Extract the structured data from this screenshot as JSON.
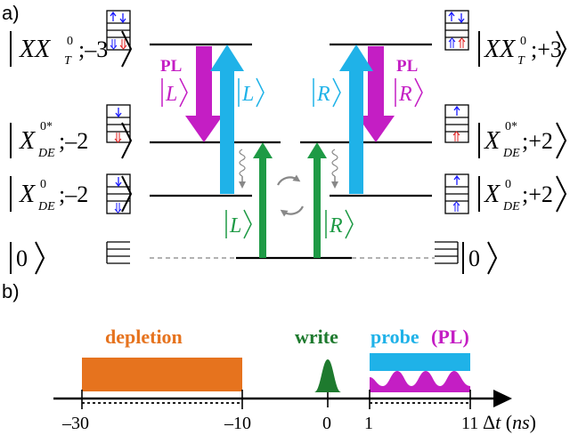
{
  "panel_a": {
    "label": "a)",
    "states_left": [
      {
        "name": "XX",
        "sub": "T",
        "sup": "0",
        "value": "–3"
      },
      {
        "name": "X",
        "sub": "DE",
        "sup": "0*",
        "value": "–2"
      },
      {
        "name": "X",
        "sub": "DE",
        "sup": "0",
        "value": "–2"
      },
      {
        "name": "0",
        "sub": "",
        "sup": "",
        "value": ""
      }
    ],
    "states_right": [
      {
        "name": "XX",
        "sub": "T",
        "sup": "0",
        "value": "+3"
      },
      {
        "name": "X",
        "sub": "DE",
        "sup": "0*",
        "value": "+2"
      },
      {
        "name": "X",
        "sub": "DE",
        "sup": "0",
        "value": "+2"
      },
      {
        "name": "0",
        "sub": "",
        "sup": "",
        "value": ""
      }
    ],
    "pl_label_left": "PL",
    "pl_label_right": "PL",
    "pol_left": "L",
    "pol_right": "R",
    "colors": {
      "pl": "#c41ec4",
      "probe": "#1fb2e8",
      "write": "#1e9a45",
      "up_spin": "#1a1aff",
      "down_spin": "#e02020",
      "relax": "#888888"
    }
  },
  "panel_b": {
    "label": "b)",
    "depletion_label": "depletion",
    "write_label": "write",
    "probe_label": "probe",
    "pl_label": "(PL)",
    "ticks": [
      "–30",
      "–10",
      "0",
      "1",
      "11"
    ],
    "axis_label_delta": "Δ",
    "axis_label_t": "t",
    "axis_unit": "ns",
    "colors": {
      "depletion": "#e6731e",
      "write": "#1e7a2e",
      "probe": "#1fb2e8",
      "pl": "#c41ec4"
    }
  }
}
